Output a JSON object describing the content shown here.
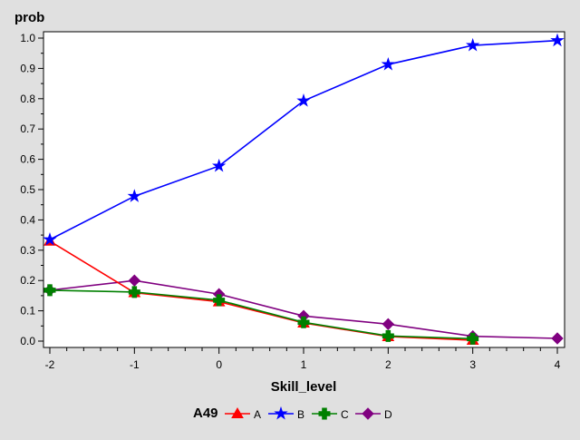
{
  "chart_data": {
    "type": "line",
    "ylabel": "prob",
    "xlabel": "Skill_level",
    "xlim": [
      -2,
      4
    ],
    "ylim": [
      0,
      1.0
    ],
    "x_ticks": [
      "-2",
      "-1",
      "0",
      "1",
      "2",
      "3",
      "4"
    ],
    "y_ticks": [
      "0.0",
      "0.1",
      "0.2",
      "0.3",
      "0.4",
      "0.5",
      "0.6",
      "0.7",
      "0.8",
      "0.9",
      "1.0"
    ],
    "grid": false,
    "legend_title": "A49",
    "legend_position": "bottom",
    "series": [
      {
        "name": "A",
        "color": "#ff0000",
        "marker": "triangle",
        "x": [
          -2,
          -1,
          0,
          1,
          2,
          3
        ],
        "y": [
          0.33,
          0.16,
          0.13,
          0.06,
          0.015,
          0.003
        ]
      },
      {
        "name": "B",
        "color": "#0000ff",
        "marker": "star",
        "x": [
          -2,
          -1,
          0,
          1,
          2,
          3,
          4
        ],
        "y": [
          0.335,
          0.478,
          0.578,
          0.793,
          0.913,
          0.976,
          0.992
        ]
      },
      {
        "name": "C",
        "color": "#008000",
        "marker": "plus",
        "x": [
          -2,
          -1,
          0,
          1,
          2,
          3
        ],
        "y": [
          0.168,
          0.162,
          0.135,
          0.062,
          0.017,
          0.008
        ]
      },
      {
        "name": "D",
        "color": "#800080",
        "marker": "diamond",
        "x": [
          -2,
          -1,
          0,
          1,
          2,
          3,
          4
        ],
        "y": [
          0.168,
          0.2,
          0.155,
          0.083,
          0.056,
          0.016,
          0.009
        ]
      }
    ]
  }
}
